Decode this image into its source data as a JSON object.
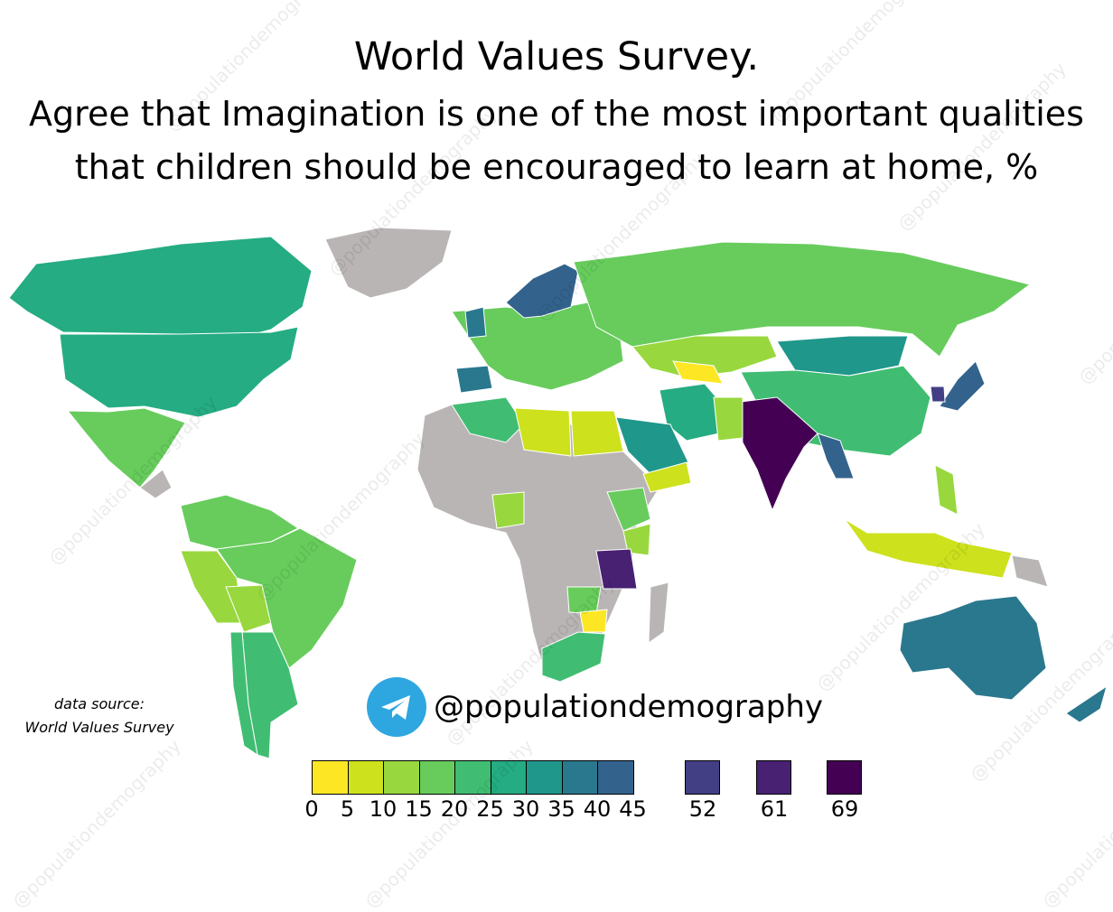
{
  "title": "World Values Survey.",
  "subtitle_line1": "Agree that Imagination is one of the most important qualities",
  "subtitle_line2": "that children should be encouraged to learn at home, %",
  "source_label": "data source:",
  "source_name": "World Values Survey",
  "brand": {
    "icon": "telegram-icon",
    "handle": "@populationdemography",
    "color": "#2ea6e0"
  },
  "watermark": "@populationdemography",
  "no_data_color": "#bab5b5",
  "legend": {
    "bins": [
      {
        "from": "0",
        "to": "5",
        "color": "#fde725"
      },
      {
        "from": "5",
        "to": "10",
        "color": "#cde11d"
      },
      {
        "from": "10",
        "to": "15",
        "color": "#98d83e"
      },
      {
        "from": "15",
        "to": "20",
        "color": "#67cc5c"
      },
      {
        "from": "20",
        "to": "25",
        "color": "#40bd72"
      },
      {
        "from": "25",
        "to": "30",
        "color": "#25ac82"
      },
      {
        "from": "30",
        "to": "35",
        "color": "#1f978b"
      },
      {
        "from": "35",
        "to": "40",
        "color": "#2a788e"
      },
      {
        "from": "40",
        "to": "45",
        "color": "#33638d"
      }
    ],
    "tick_labels": [
      "0",
      "5",
      "10",
      "15",
      "20",
      "25",
      "30",
      "35",
      "40",
      "45"
    ],
    "singles": [
      {
        "label": "52",
        "color": "#423f85"
      },
      {
        "label": "61",
        "color": "#482173"
      },
      {
        "label": "69",
        "color": "#440154"
      }
    ]
  },
  "regions": [
    {
      "name": "Greenland",
      "bin": "none"
    },
    {
      "name": "Canada",
      "bin": "25-30"
    },
    {
      "name": "United States",
      "bin": "25-30"
    },
    {
      "name": "Mexico",
      "bin": "15-20"
    },
    {
      "name": "Central America",
      "bin": "none"
    },
    {
      "name": "South America north",
      "bin": "15-20"
    },
    {
      "name": "Peru",
      "bin": "10-15"
    },
    {
      "name": "Bolivia",
      "bin": "10-15"
    },
    {
      "name": "Brazil",
      "bin": "15-20"
    },
    {
      "name": "Argentina",
      "bin": "20-25"
    },
    {
      "name": "Chile",
      "bin": "20-25"
    },
    {
      "name": "Africa (no data)",
      "bin": "none"
    },
    {
      "name": "Algeria",
      "bin": "20-25"
    },
    {
      "name": "Libya",
      "bin": "5-10"
    },
    {
      "name": "Egypt",
      "bin": "5-10"
    },
    {
      "name": "Nigeria",
      "bin": "10-15"
    },
    {
      "name": "Ethiopia",
      "bin": "15-20"
    },
    {
      "name": "Kenya",
      "bin": "10-15"
    },
    {
      "name": "Tanzania",
      "bin": "61"
    },
    {
      "name": "Zambia",
      "bin": "15-20"
    },
    {
      "name": "Zimbabwe",
      "bin": "0-5"
    },
    {
      "name": "South Africa",
      "bin": "20-25"
    },
    {
      "name": "Madagascar",
      "bin": "none"
    },
    {
      "name": "Europe",
      "bin": "15-20"
    },
    {
      "name": "Spain",
      "bin": "35-40"
    },
    {
      "name": "Scandinavia",
      "bin": "40-45"
    },
    {
      "name": "United Kingdom",
      "bin": "35-40"
    },
    {
      "name": "Russia",
      "bin": "15-20"
    },
    {
      "name": "Kazakhstan",
      "bin": "10-15"
    },
    {
      "name": "Uzbekistan",
      "bin": "0-5"
    },
    {
      "name": "Mongolia",
      "bin": "30-35"
    },
    {
      "name": "China",
      "bin": "20-25"
    },
    {
      "name": "India",
      "bin": "69"
    },
    {
      "name": "Myanmar",
      "bin": "40-45"
    },
    {
      "name": "Iran",
      "bin": "25-30"
    },
    {
      "name": "Saudi Arabia",
      "bin": "30-35"
    },
    {
      "name": "Yemen",
      "bin": "5-10"
    },
    {
      "name": "Pakistan",
      "bin": "10-15"
    },
    {
      "name": "Japan",
      "bin": "40-45"
    },
    {
      "name": "South Korea",
      "bin": "52"
    },
    {
      "name": "Indonesia",
      "bin": "5-10"
    },
    {
      "name": "Philippines",
      "bin": "10-15"
    },
    {
      "name": "Papua New Guinea",
      "bin": "none"
    },
    {
      "name": "Australia",
      "bin": "35-40"
    },
    {
      "name": "New Zealand",
      "bin": "35-40"
    }
  ]
}
